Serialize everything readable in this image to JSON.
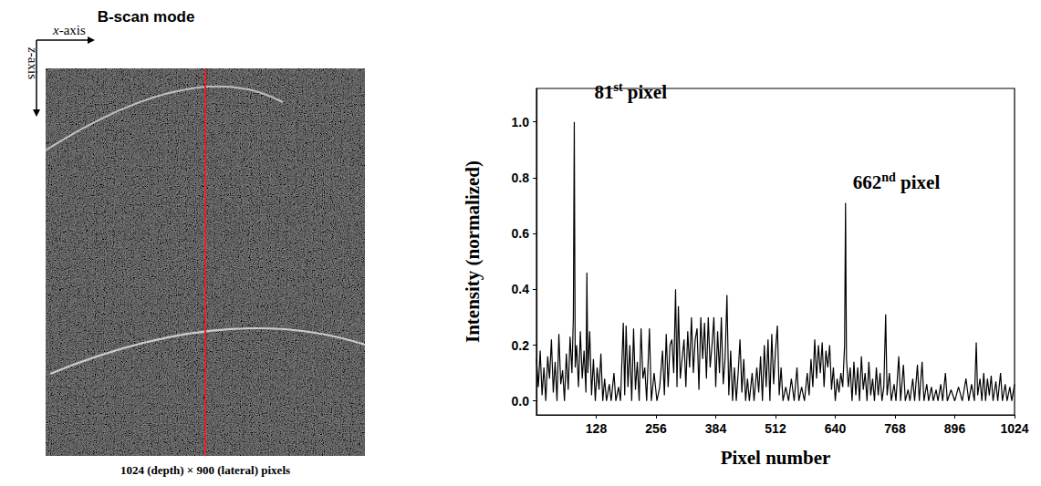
{
  "image_panel": {
    "title": "B-scan mode",
    "x_axis_label": "x-axis",
    "z_axis_label": "z-axis",
    "caption": "1024 (depth) × 900 (lateral) pixels"
  },
  "chart_data": {
    "type": "line",
    "xlabel": "Pixel number",
    "ylabel": "Intensity (normalized)",
    "color": "#000000",
    "grid": false,
    "xlim": [
      0,
      1024
    ],
    "xticks": [
      128,
      256,
      384,
      512,
      640,
      768,
      896,
      1024
    ],
    "ylim": [
      -0.05,
      1.12
    ],
    "yticks": [
      {
        "value": 0,
        "label": "0.0"
      },
      0.2,
      0.4,
      0.6,
      0.8,
      {
        "value": 1,
        "label": "1.0"
      }
    ],
    "annotations": [
      {
        "text": "81st pixel",
        "x": 81,
        "y": 1.0
      },
      {
        "text": "662nd pixel",
        "x": 662,
        "y": 0.71
      }
    ],
    "x": [
      0,
      4,
      8,
      12,
      16,
      20,
      24,
      28,
      32,
      36,
      40,
      44,
      48,
      52,
      56,
      60,
      64,
      68,
      72,
      76,
      79,
      81,
      83,
      86,
      90,
      94,
      98,
      102,
      106,
      108,
      110,
      114,
      118,
      122,
      126,
      130,
      134,
      138,
      142,
      146,
      150,
      156,
      160,
      166,
      170,
      176,
      180,
      186,
      189,
      192,
      196,
      200,
      204,
      208,
      212,
      216,
      220,
      224,
      228,
      232,
      236,
      242,
      246,
      252,
      258,
      264,
      270,
      274,
      278,
      282,
      286,
      290,
      294,
      298,
      301,
      304,
      308,
      312,
      316,
      320,
      324,
      328,
      332,
      336,
      340,
      344,
      348,
      352,
      356,
      360,
      364,
      368,
      372,
      376,
      380,
      384,
      388,
      392,
      396,
      400,
      404,
      408,
      412,
      416,
      420,
      424,
      428,
      432,
      436,
      440,
      444,
      448,
      452,
      456,
      462,
      466,
      472,
      476,
      480,
      484,
      488,
      492,
      496,
      500,
      504,
      508,
      512,
      516,
      520,
      524,
      528,
      534,
      540,
      546,
      552,
      558,
      562,
      568,
      574,
      580,
      584,
      588,
      592,
      596,
      600,
      604,
      608,
      612,
      616,
      620,
      624,
      628,
      632,
      636,
      640,
      644,
      648,
      652,
      656,
      660,
      662,
      664,
      668,
      672,
      676,
      680,
      684,
      688,
      692,
      696,
      700,
      704,
      708,
      712,
      716,
      720,
      724,
      728,
      732,
      736,
      740,
      744,
      748,
      751,
      756,
      760,
      766,
      770,
      776,
      780,
      786,
      790,
      796,
      800,
      806,
      810,
      816,
      820,
      826,
      830,
      836,
      840,
      846,
      850,
      856,
      860,
      866,
      870,
      876,
      880,
      888,
      896,
      904,
      912,
      920,
      926,
      932,
      938,
      942,
      945,
      950,
      954,
      958,
      962,
      966,
      970,
      974,
      978,
      984,
      988,
      994,
      998,
      1004,
      1008,
      1014,
      1018,
      1024
    ],
    "values": [
      0.15,
      0.05,
      0.18,
      0.02,
      0.12,
      0.0,
      0.16,
      0.08,
      0.22,
      0.03,
      0.14,
      0.0,
      0.24,
      0.06,
      0.11,
      0.0,
      0.17,
      0.04,
      0.23,
      0.1,
      0.3,
      1.0,
      0.12,
      0.2,
      0.05,
      0.25,
      0.08,
      0.18,
      0.03,
      0.46,
      0.1,
      0.25,
      0.02,
      0.15,
      0.0,
      0.12,
      0.04,
      0.17,
      0.0,
      0.08,
      0.0,
      0.06,
      0.0,
      0.1,
      0.0,
      0.05,
      0.0,
      0.28,
      0.02,
      0.27,
      0.05,
      0.2,
      0.0,
      0.26,
      0.04,
      0.14,
      0.0,
      0.26,
      0.08,
      0.12,
      0.0,
      0.26,
      0.0,
      0.1,
      0.0,
      0.05,
      0.18,
      0.02,
      0.24,
      0.05,
      0.2,
      0.22,
      0.1,
      0.4,
      0.05,
      0.34,
      0.08,
      0.15,
      0.22,
      0.05,
      0.25,
      0.12,
      0.3,
      0.1,
      0.22,
      0.26,
      0.04,
      0.3,
      0.15,
      0.28,
      0.08,
      0.3,
      0.12,
      0.2,
      0.3,
      0.05,
      0.25,
      0.1,
      0.3,
      0.06,
      0.15,
      0.38,
      0.02,
      0.18,
      0.0,
      0.12,
      0.0,
      0.1,
      0.22,
      0.03,
      0.15,
      0.0,
      0.08,
      0.0,
      0.1,
      0.0,
      0.12,
      0.03,
      0.16,
      0.0,
      0.2,
      0.05,
      0.22,
      0.0,
      0.24,
      0.06,
      0.18,
      0.27,
      0.02,
      0.12,
      0.0,
      0.05,
      0.0,
      0.08,
      0.0,
      0.12,
      0.0,
      0.05,
      0.0,
      0.1,
      0.02,
      0.15,
      0.05,
      0.22,
      0.08,
      0.2,
      0.1,
      0.21,
      0.05,
      0.18,
      0.12,
      0.2,
      0.04,
      0.12,
      0.0,
      0.08,
      0.03,
      0.1,
      0.05,
      0.2,
      0.71,
      0.15,
      0.05,
      0.12,
      0.0,
      0.14,
      0.02,
      0.12,
      0.0,
      0.16,
      0.04,
      0.1,
      0.0,
      0.14,
      0.02,
      0.08,
      0.0,
      0.12,
      0.02,
      0.1,
      0.0,
      0.05,
      0.31,
      0.02,
      0.1,
      0.0,
      0.06,
      0.0,
      0.16,
      0.0,
      0.13,
      0.0,
      0.04,
      0.0,
      0.08,
      0.0,
      0.13,
      0.0,
      0.14,
      0.0,
      0.06,
      0.0,
      0.05,
      0.0,
      0.04,
      0.0,
      0.06,
      0.0,
      0.1,
      0.0,
      0.04,
      0.0,
      0.05,
      0.0,
      0.08,
      0.0,
      0.06,
      0.0,
      0.21,
      0.02,
      0.08,
      0.0,
      0.1,
      0.0,
      0.08,
      0.02,
      0.09,
      0.0,
      0.07,
      0.0,
      0.1,
      0.0,
      0.06,
      0.0,
      0.05,
      0.0,
      0.06
    ]
  }
}
